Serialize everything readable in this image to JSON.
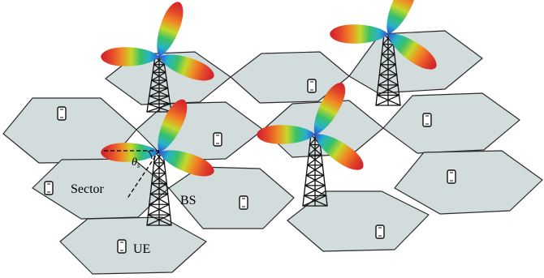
{
  "labels": {
    "sector": "Sector",
    "base_station": "BS",
    "user_equipment": "UE",
    "angle_symbol": "θ",
    "angle_subscript": "s"
  },
  "colors": {
    "cell_fill": "#d2dcdc",
    "cell_stroke": "#2b2b2b",
    "lobe_gradient": [
      "#d11f2b",
      "#f08a24",
      "#c6d92a",
      "#39c06a",
      "#27b3c9",
      "#2f4fd6"
    ],
    "tower": "#111111"
  },
  "icons": [
    "phone-icon",
    "tower-icon",
    "antenna-lobe"
  ],
  "counts": {
    "cells": 11,
    "base_stations": 4,
    "user_equipment": 9,
    "sectors_per_station": 3
  }
}
